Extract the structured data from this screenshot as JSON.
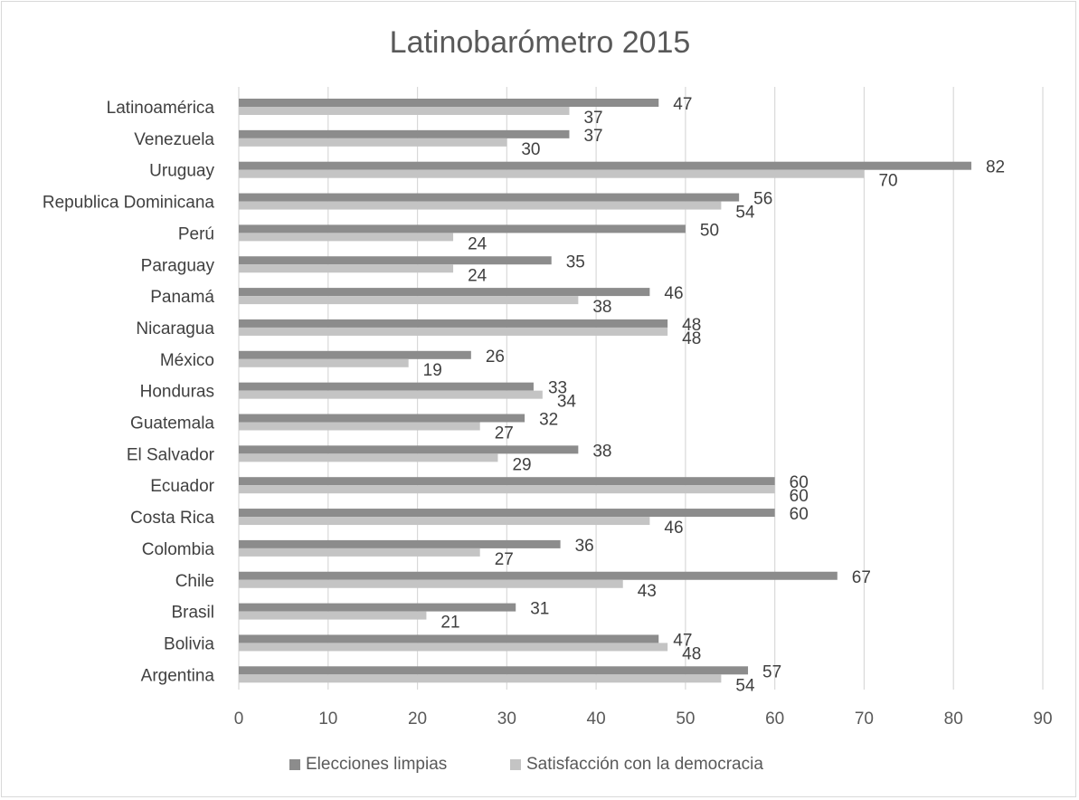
{
  "chart_data": {
    "type": "bar",
    "orientation": "horizontal",
    "title": "Latinobarómetro 2015",
    "xlabel": "",
    "ylabel": "",
    "categories": [
      "Latinoamérica",
      "Venezuela",
      "Uruguay",
      "Republica Dominicana",
      "Perú",
      "Paraguay",
      "Panamá",
      "Nicaragua",
      "México",
      "Honduras",
      "Guatemala",
      "El Salvador",
      "Ecuador",
      "Costa Rica",
      "Colombia",
      "Chile",
      "Brasil",
      "Bolivia",
      "Argentina"
    ],
    "series": [
      {
        "name": "Elecciones limpias",
        "color": "#8c8c8c",
        "values": [
          47,
          37,
          82,
          56,
          50,
          35,
          46,
          48,
          26,
          33,
          32,
          38,
          60,
          60,
          36,
          67,
          31,
          47,
          57
        ]
      },
      {
        "name": "Satisfacción con la democracia",
        "color": "#c4c4c4",
        "values": [
          37,
          30,
          70,
          54,
          24,
          24,
          38,
          48,
          19,
          34,
          27,
          29,
          60,
          46,
          27,
          43,
          21,
          48,
          54
        ]
      }
    ],
    "xlim": [
      0,
      90
    ],
    "xticks": [
      "0",
      "10",
      "20",
      "30",
      "40",
      "50",
      "60",
      "70",
      "80",
      "90"
    ],
    "grid": true,
    "data_labels": true,
    "legend_position": "bottom"
  }
}
